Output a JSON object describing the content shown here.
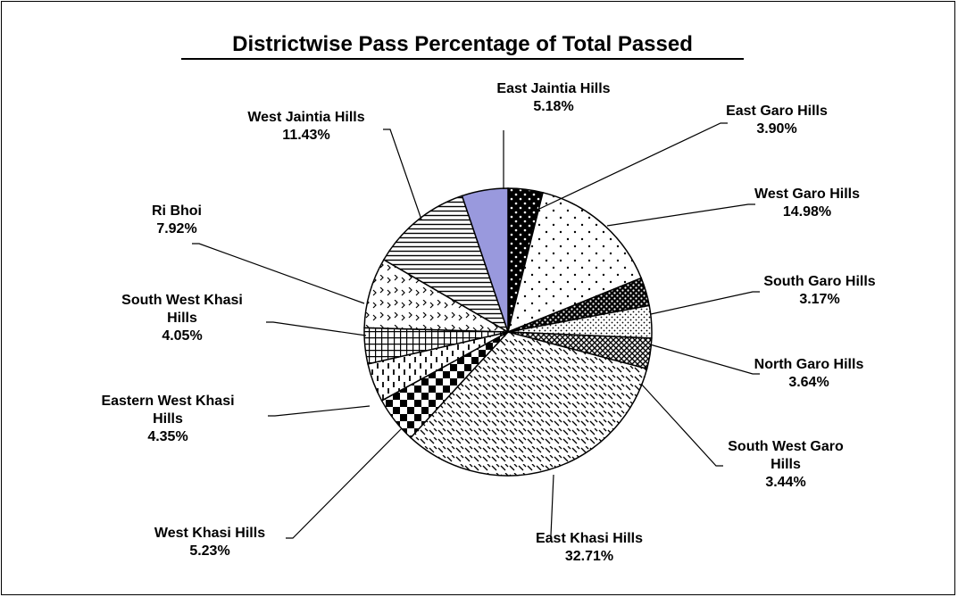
{
  "chart_data": {
    "type": "pie",
    "title": "Districtwise Pass Percentage of Total Passed",
    "slices": [
      {
        "label": [
          "East Garo Hills"
        ],
        "value_text": "3.90%",
        "value": 3.9,
        "pattern": "dots-light-on-dark"
      },
      {
        "label": [
          "West Garo Hills"
        ],
        "value_text": "14.98%",
        "value": 14.98,
        "pattern": "sparse-dots"
      },
      {
        "label": [
          "South Garo Hills"
        ],
        "value_text": "3.17%",
        "value": 3.17,
        "pattern": "dense-dark-dots"
      },
      {
        "label": [
          "North Garo Hills"
        ],
        "value_text": "3.64%",
        "value": 3.64,
        "pattern": "fine-dots"
      },
      {
        "label": [
          "South West Garo",
          "Hills"
        ],
        "value_text": "3.44%",
        "value": 3.44,
        "pattern": "crosshatch"
      },
      {
        "label": [
          "East Khasi Hills"
        ],
        "value_text": "32.71%",
        "value": 32.71,
        "pattern": "diagonal-dashes"
      },
      {
        "label": [
          "West Khasi Hills"
        ],
        "value_text": "5.23%",
        "value": 5.23,
        "pattern": "checkerboard"
      },
      {
        "label": [
          "Eastern West Khasi",
          "Hills"
        ],
        "value_text": "4.35%",
        "value": 4.35,
        "pattern": "vertical-dashes"
      },
      {
        "label": [
          "South West Khasi",
          "Hills"
        ],
        "value_text": "4.05%",
        "value": 4.05,
        "pattern": "grid"
      },
      {
        "label": [
          "Ri Bhoi"
        ],
        "value_text": "7.92%",
        "value": 7.92,
        "pattern": "zigzag"
      },
      {
        "label": [
          "West Jaintia Hills"
        ],
        "value_text": "11.43%",
        "value": 11.43,
        "pattern": "horizontal-lines"
      },
      {
        "label": [
          "East Jaintia Hills"
        ],
        "value_text": "5.18%",
        "value": 5.18,
        "pattern": "solid",
        "color": "#9999dd"
      }
    ]
  }
}
